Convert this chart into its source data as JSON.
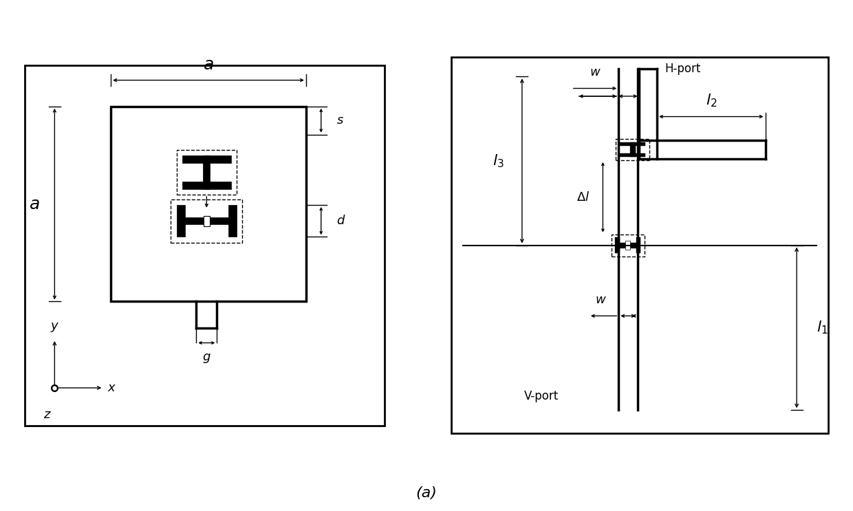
{
  "fig_width": 12.4,
  "fig_height": 7.43,
  "bg_color": "#ffffff",
  "lc": "#000000",
  "caption": "(a)",
  "caption_fontsize": 16,
  "lw_outer": 2.0,
  "lw_thick": 2.5,
  "lw_med": 1.5,
  "lw_thin": 1.0,
  "fs_large": 16,
  "fs_med": 13,
  "fs_small": 11
}
